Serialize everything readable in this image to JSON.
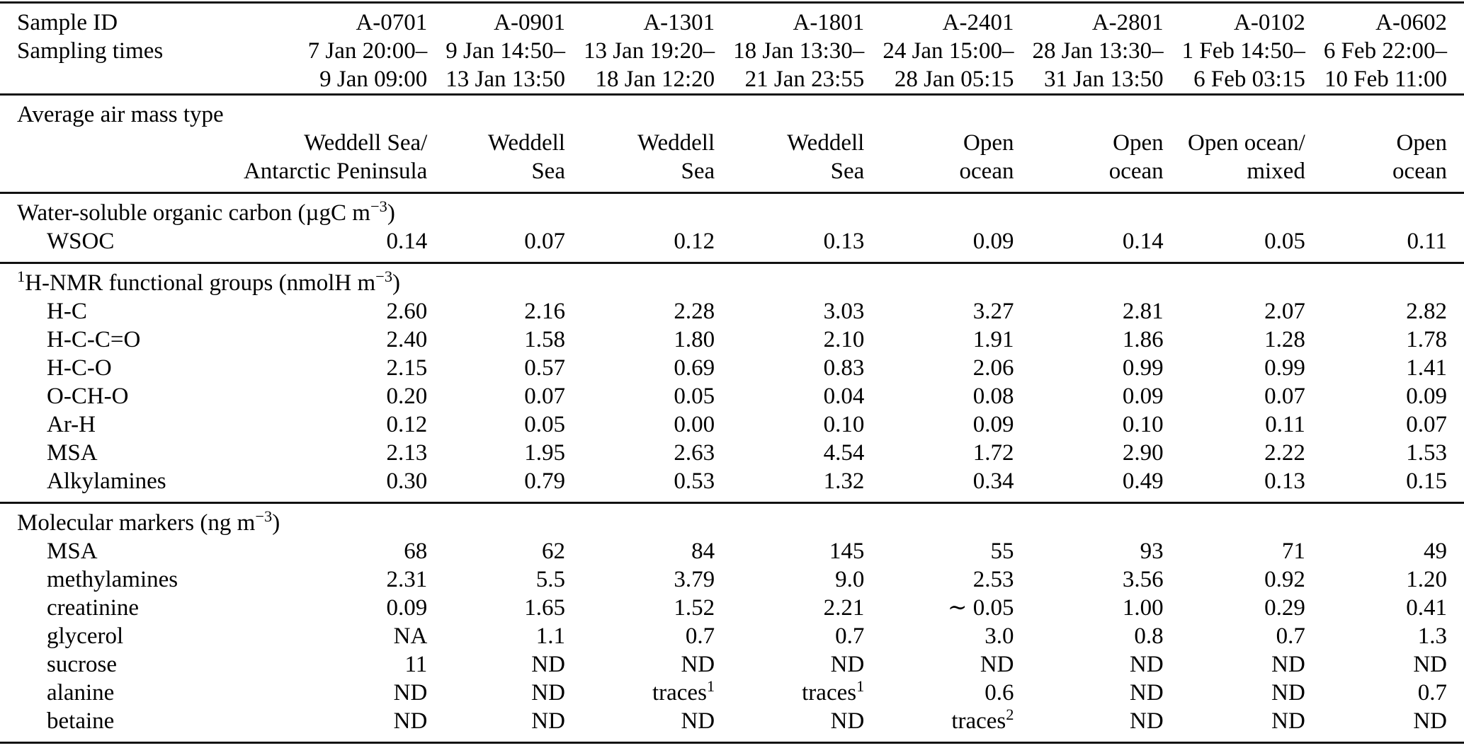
{
  "header": {
    "sample_id_label": "Sample ID",
    "sampling_times_label": "Sampling times"
  },
  "columns": [
    {
      "id": "A-0701",
      "time_start": "7 Jan 20:00–",
      "time_end": "9 Jan 09:00",
      "airmass": [
        "Weddell Sea/",
        "Antarctic Peninsula"
      ]
    },
    {
      "id": "A-0901",
      "time_start": "9 Jan 14:50–",
      "time_end": "13 Jan 13:50",
      "airmass": [
        "Weddell",
        "Sea"
      ]
    },
    {
      "id": "A-1301",
      "time_start": "13 Jan 19:20–",
      "time_end": "18 Jan 12:20",
      "airmass": [
        "Weddell",
        "Sea"
      ]
    },
    {
      "id": "A-1801",
      "time_start": "18 Jan 13:30–",
      "time_end": "21 Jan 23:55",
      "airmass": [
        "Weddell",
        "Sea"
      ]
    },
    {
      "id": "A-2401",
      "time_start": "24 Jan 15:00–",
      "time_end": "28 Jan 05:15",
      "airmass": [
        "Open",
        "ocean"
      ]
    },
    {
      "id": "A-2801",
      "time_start": "28 Jan 13:30–",
      "time_end": "31 Jan 13:50",
      "airmass": [
        "Open",
        "ocean"
      ]
    },
    {
      "id": "A-0102",
      "time_start": "1 Feb 14:50–",
      "time_end": "6 Feb 03:15",
      "airmass": [
        "Open ocean/",
        "mixed"
      ]
    },
    {
      "id": "A-0602",
      "time_start": "6 Feb 22:00–",
      "time_end": "10 Feb 11:00",
      "airmass": [
        "Open",
        "ocean"
      ]
    }
  ],
  "airmass": {
    "label": "Average air mass type"
  },
  "sections": {
    "wsoc": {
      "title_pre": "Water-soluble organic carbon (µgC m",
      "title_sup": "−3",
      "title_post": ")",
      "rows": [
        {
          "label": "WSOC",
          "values": [
            "0.14",
            "0.07",
            "0.12",
            "0.13",
            "0.09",
            "0.14",
            "0.05",
            "0.11"
          ]
        }
      ]
    },
    "nmr": {
      "title_sup1": "1",
      "title_pre": "H-NMR functional groups (nmolH m",
      "title_sup": "−3",
      "title_post": ")",
      "rows": [
        {
          "label": "H-C",
          "values": [
            "2.60",
            "2.16",
            "2.28",
            "3.03",
            "3.27",
            "2.81",
            "2.07",
            "2.82"
          ]
        },
        {
          "label": "H-C-C=O",
          "values": [
            "2.40",
            "1.58",
            "1.80",
            "2.10",
            "1.91",
            "1.86",
            "1.28",
            "1.78"
          ]
        },
        {
          "label": "H-C-O",
          "values": [
            "2.15",
            "0.57",
            "0.69",
            "0.83",
            "2.06",
            "0.99",
            "0.99",
            "1.41"
          ]
        },
        {
          "label": "O-CH-O",
          "values": [
            "0.20",
            "0.07",
            "0.05",
            "0.04",
            "0.08",
            "0.09",
            "0.07",
            "0.09"
          ]
        },
        {
          "label": "Ar-H",
          "values": [
            "0.12",
            "0.05",
            "0.00",
            "0.10",
            "0.09",
            "0.10",
            "0.11",
            "0.07"
          ]
        },
        {
          "label": "MSA",
          "values": [
            "2.13",
            "1.95",
            "2.63",
            "4.54",
            "1.72",
            "2.90",
            "2.22",
            "1.53"
          ]
        },
        {
          "label": "Alkylamines",
          "values": [
            "0.30",
            "0.79",
            "0.53",
            "1.32",
            "0.34",
            "0.49",
            "0.13",
            "0.15"
          ]
        }
      ]
    },
    "markers": {
      "title_pre": "Molecular markers (ng m",
      "title_sup": "−3",
      "title_post": ")",
      "rows": [
        {
          "label": "MSA",
          "values": [
            "68",
            "62",
            "84",
            "145",
            "55",
            "93",
            "71",
            "49"
          ]
        },
        {
          "label": "methylamines",
          "values": [
            "2.31",
            "5.5",
            "3.79",
            "9.0",
            "2.53",
            "3.56",
            "0.92",
            "1.20"
          ]
        },
        {
          "label": "creatinine",
          "values": [
            "0.09",
            "1.65",
            "1.52",
            "2.21",
            "∼ 0.05",
            "1.00",
            "0.29",
            "0.41"
          ]
        },
        {
          "label": "glycerol",
          "values": [
            "NA",
            "1.1",
            "0.7",
            "0.7",
            "3.0",
            "0.8",
            "0.7",
            "1.3"
          ]
        },
        {
          "label": "sucrose",
          "values": [
            "11",
            "ND",
            "ND",
            "ND",
            "ND",
            "ND",
            "ND",
            "ND"
          ]
        },
        {
          "label": "alanine",
          "values": [
            "ND",
            "ND",
            "traces¹",
            "traces¹",
            "0.6",
            "ND",
            "ND",
            "0.7"
          ]
        },
        {
          "label": "betaine",
          "values": [
            "ND",
            "ND",
            "ND",
            "ND",
            "traces²",
            "ND",
            "ND",
            "ND"
          ]
        }
      ]
    }
  }
}
